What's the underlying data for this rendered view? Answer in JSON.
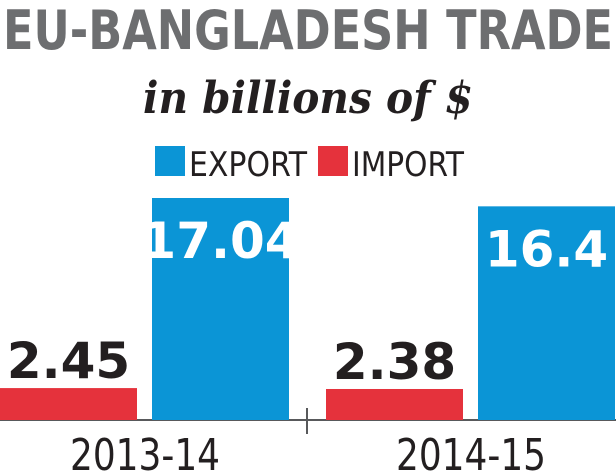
{
  "chart_data": {
    "type": "bar",
    "title": "EU-BANGLADESH TRADE",
    "subtitle": "in billions of $",
    "categories": [
      "2013-14",
      "2014-15"
    ],
    "series": [
      {
        "name": "EXPORT",
        "color": "#0b95d6",
        "values": [
          17.04,
          16.4
        ]
      },
      {
        "name": "IMPORT",
        "color": "#e5323c",
        "values": [
          2.45,
          2.38
        ]
      }
    ]
  }
}
